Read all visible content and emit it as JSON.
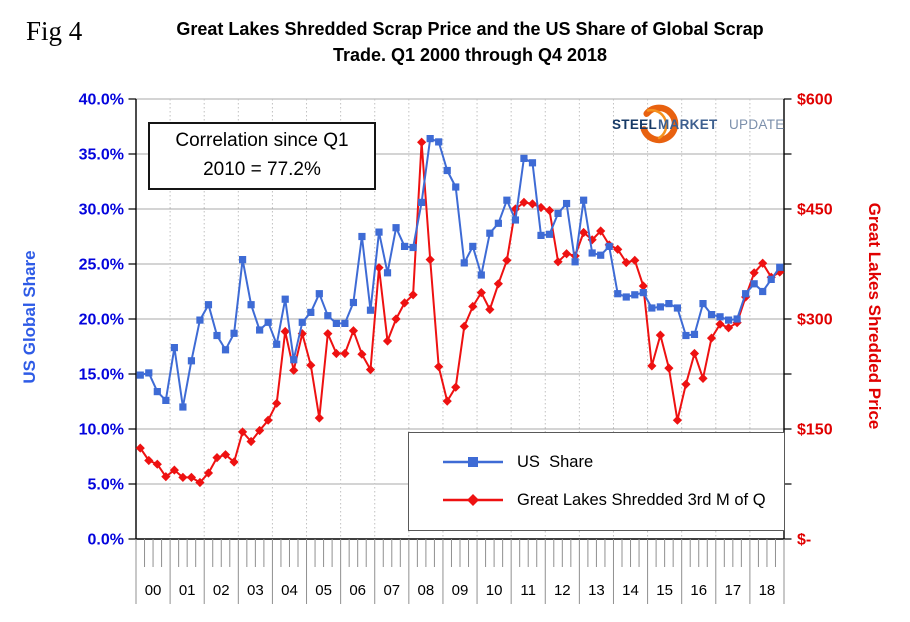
{
  "fig_label": "Fig 4",
  "title_line1": "Great Lakes Shredded Scrap Price and the US Share of Global Scrap",
  "title_line2": "Trade. Q1 2000 through Q4 2018",
  "annotation": {
    "line1": "Correlation since Q1",
    "line2": "2010 = 77.2%"
  },
  "logo": {
    "steel": "STEEL",
    "market": "MARKET",
    "update": "UPDATE"
  },
  "left_axis": {
    "title": "US Global Share",
    "ticks": [
      "40.0%",
      "35.0%",
      "30.0%",
      "25.0%",
      "20.0%",
      "15.0%",
      "10.0%",
      "5.0%",
      "0.0%"
    ]
  },
  "right_axis": {
    "title": "Great Lakes Shredded Price",
    "ticks": [
      "$600",
      "$450",
      "$300",
      "$150",
      "$-"
    ]
  },
  "x_axis": {
    "year_labels": [
      "00",
      "01",
      "02",
      "03",
      "04",
      "05",
      "06",
      "07",
      "08",
      "09",
      "10",
      "11",
      "12",
      "13",
      "14",
      "15",
      "16",
      "17",
      "18"
    ],
    "quarters_per_year": 4
  },
  "legend": [
    {
      "label": "US  Share",
      "marker": "square"
    },
    {
      "label": "Great Lakes Shredded 3rd M of Q",
      "marker": "diamond"
    }
  ],
  "colors": {
    "us_share": "#3E6BD5",
    "price": "#EE1111",
    "left_tick": "#0404DD",
    "right_tick": "#E00000",
    "grid": "#A8A8A8",
    "year_grid": "#C0C0C0",
    "axis": "#000000",
    "tick_gray": "#909090"
  },
  "chart_data": {
    "type": "line",
    "title": "Great Lakes Shredded Scrap Price and the US Share of Global Scrap Trade. Q1 2000 through Q4 2018",
    "x_range": "Q1 2000 through Q4 2018 (quarterly, 76 points)",
    "left_ylim": [
      0,
      40
    ],
    "right_ylim": [
      0,
      600
    ],
    "grid": true,
    "legend_position": "bottom-center-inside",
    "series": [
      {
        "name": "US Share",
        "axis": "left",
        "unit": "percent",
        "values": [
          14.9,
          15.1,
          13.4,
          12.6,
          17.4,
          12.0,
          16.2,
          19.9,
          21.3,
          18.5,
          17.2,
          18.7,
          25.4,
          21.3,
          19.0,
          19.7,
          17.7,
          21.8,
          16.3,
          19.7,
          20.6,
          22.3,
          20.3,
          19.6,
          19.6,
          21.5,
          27.5,
          20.8,
          27.9,
          24.2,
          28.3,
          26.6,
          26.5,
          30.6,
          36.4,
          36.1,
          33.5,
          32.0,
          25.1,
          26.6,
          24.0,
          27.8,
          28.7,
          30.8,
          29.0,
          34.6,
          34.2,
          27.6,
          27.7,
          29.6,
          30.5,
          25.2,
          30.8,
          26.0,
          25.8,
          26.6,
          22.3,
          22.0,
          22.2,
          22.4,
          21.0,
          21.1,
          21.4,
          21.0,
          18.5,
          18.6,
          21.4,
          20.4,
          20.2,
          19.9,
          20.0,
          22.3,
          23.2,
          22.5,
          23.6,
          24.7
        ]
      },
      {
        "name": "Great Lakes Shredded 3rd M of Q",
        "axis": "right",
        "unit": "USD per ton",
        "values": [
          124,
          107,
          102,
          85,
          94,
          84,
          84,
          77,
          90,
          111,
          115,
          105,
          146,
          133,
          148,
          162,
          185,
          283,
          230,
          280,
          237,
          165,
          280,
          253,
          253,
          284,
          252,
          231,
          370,
          270,
          300,
          322,
          333,
          541,
          381,
          235,
          188,
          207,
          290,
          317,
          336,
          313,
          348,
          380,
          450,
          459,
          457,
          452,
          448,
          378,
          389,
          386,
          418,
          408,
          420,
          401,
          395,
          377,
          380,
          345,
          236,
          278,
          233,
          162,
          211,
          253,
          219,
          274,
          293,
          288,
          295,
          330,
          363,
          376,
          357,
          364
        ]
      }
    ]
  }
}
